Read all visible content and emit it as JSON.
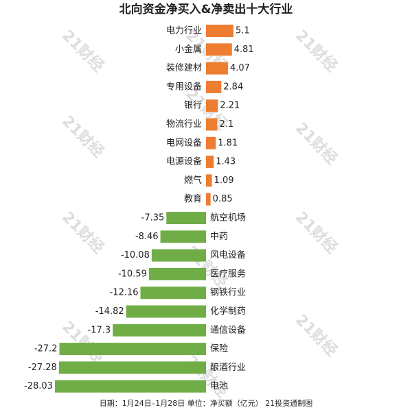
{
  "chart_data": {
    "type": "bar",
    "orientation": "horizontal",
    "title": "北向资金净买入&净卖出十大行业",
    "categories": [
      "电力行业",
      "小金属",
      "装修建材",
      "专用设备",
      "银行",
      "物流行业",
      "电网设备",
      "电源设备",
      "燃气",
      "教育",
      "航空机场",
      "中药",
      "风电设备",
      "医疗服务",
      "钢铁行业",
      "化学制药",
      "通信设备",
      "保险",
      "酿酒行业",
      "电池"
    ],
    "values": [
      5.1,
      4.81,
      4.07,
      2.84,
      2.21,
      2.1,
      1.81,
      1.43,
      1.09,
      0.85,
      -7.35,
      -8.46,
      -10.08,
      -10.59,
      -12.16,
      -14.82,
      -17.3,
      -27.2,
      -27.28,
      -28.03
    ],
    "color_positive": "#ed7d31",
    "color_negative": "#70ad47",
    "footnote": "日期：1月24日–1月28日 单位：净买额（亿元） 21投资通制图",
    "watermark": "21财经"
  }
}
